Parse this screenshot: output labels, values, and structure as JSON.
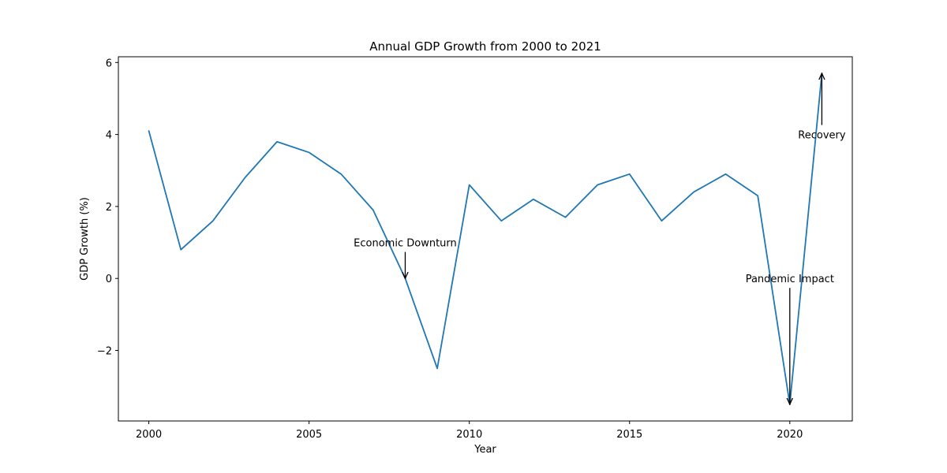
{
  "chart_data": {
    "type": "line",
    "title": "Annual GDP Growth from 2000 to 2021",
    "xlabel": "Year",
    "ylabel": "GDP Growth (%)",
    "xlim": [
      1999.05,
      2021.95
    ],
    "ylim": [
      -3.96,
      6.16
    ],
    "xticks": [
      2000,
      2005,
      2010,
      2015,
      2020
    ],
    "yticks": [
      -2,
      0,
      2,
      4,
      6
    ],
    "grid": false,
    "series": [
      {
        "color": "#1f77b4",
        "x": [
          2000,
          2001,
          2002,
          2003,
          2004,
          2005,
          2006,
          2007,
          2008,
          2009,
          2010,
          2011,
          2012,
          2013,
          2014,
          2015,
          2016,
          2017,
          2018,
          2019,
          2020,
          2021
        ],
        "y": [
          4.1,
          0.8,
          1.6,
          2.8,
          3.8,
          3.5,
          2.9,
          1.9,
          0.0,
          -2.5,
          2.6,
          1.6,
          2.2,
          1.7,
          2.6,
          2.9,
          1.6,
          2.4,
          2.9,
          2.3,
          -3.5,
          5.7
        ]
      }
    ],
    "annotations": [
      {
        "text": "Economic Downturn",
        "x": 2008,
        "y": 0.0,
        "text_x": 2008,
        "text_y": 1.0
      },
      {
        "text": "Pandemic Impact",
        "x": 2020,
        "y": -3.5,
        "text_x": 2020,
        "text_y": 0.0
      },
      {
        "text": "Recovery",
        "x": 2021,
        "y": 5.7,
        "text_x": 2021,
        "text_y": 4.0
      }
    ]
  }
}
